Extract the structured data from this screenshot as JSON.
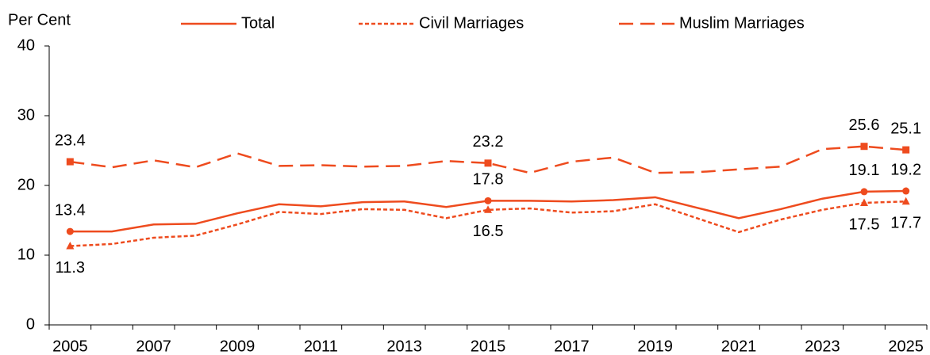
{
  "chart_data": {
    "type": "line",
    "y_axis_label": "Per Cent",
    "categories": [
      "2005",
      null,
      "2007",
      null,
      "2009",
      null,
      "2011",
      null,
      "2013",
      null,
      "2015",
      null,
      "2017",
      null,
      "2019",
      null,
      "2021",
      null,
      "2023",
      null,
      "2025"
    ],
    "series": [
      {
        "name": "Total",
        "color": "#ee4b1e",
        "dash": "solid",
        "marker": "circle",
        "values": [
          13.4,
          13.4,
          14.4,
          14.5,
          16.0,
          17.3,
          17.0,
          17.6,
          17.7,
          16.9,
          17.8,
          17.8,
          17.7,
          17.9,
          18.3,
          16.8,
          15.3,
          16.6,
          18.1,
          19.1,
          19.2
        ],
        "label_position": "above"
      },
      {
        "name": "Civil Marriages",
        "color": "#ee4b1e",
        "dash": "short",
        "marker": "triangle",
        "values": [
          11.3,
          11.6,
          12.5,
          12.8,
          14.4,
          16.2,
          15.9,
          16.6,
          16.5,
          15.3,
          16.5,
          16.7,
          16.1,
          16.3,
          17.3,
          15.3,
          13.3,
          15.1,
          16.5,
          17.5,
          17.7
        ],
        "label_position": "below"
      },
      {
        "name": "Muslim Marriages",
        "color": "#ee4b1e",
        "dash": "long",
        "marker": "square",
        "values": [
          23.4,
          22.6,
          23.6,
          22.6,
          24.6,
          22.8,
          22.9,
          22.7,
          22.8,
          23.5,
          23.2,
          21.8,
          23.4,
          24.0,
          21.8,
          21.9,
          22.3,
          22.7,
          25.2,
          25.6,
          25.1
        ],
        "label_position": "above"
      }
    ],
    "labeled_indices": [
      0,
      10,
      19,
      20
    ],
    "ylim": [
      0,
      40
    ],
    "yticks": [
      0,
      10,
      20,
      30,
      40
    ],
    "grid": false,
    "legend": "top"
  }
}
